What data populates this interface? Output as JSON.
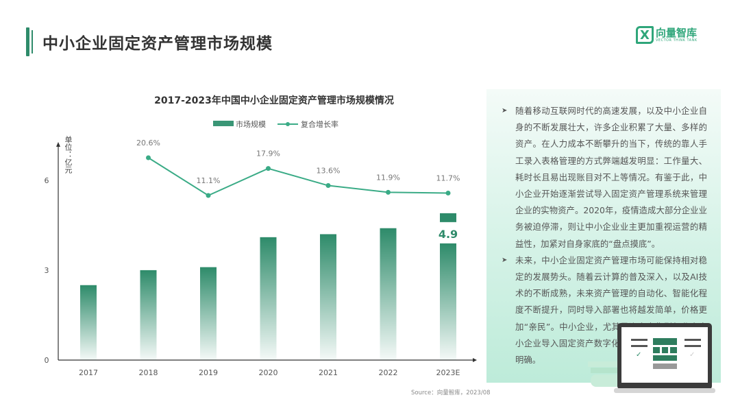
{
  "header": {
    "title": "中小企业固定资产管理市场规模"
  },
  "logo": {
    "mark": "X",
    "name_cn": "向量智库",
    "name_en": "VECTOR THINK TANK"
  },
  "chart_data": {
    "type": "bar+line",
    "title": "2017-2023年中国中小企业固定资产管理市场规模情况",
    "ylabel": "单位：亿元",
    "categories": [
      "2017",
      "2018",
      "2019",
      "2020",
      "2021",
      "2022",
      "2023E"
    ],
    "ylim": [
      0,
      7.2
    ],
    "yticks": [
      "0",
      "3",
      "6"
    ],
    "grid": false,
    "legend_position": "top",
    "series": [
      {
        "name": "市场规模",
        "type": "bar",
        "values": [
          2.5,
          3.0,
          3.1,
          4.1,
          4.2,
          4.4,
          4.9
        ],
        "color": "#2e8b6a"
      },
      {
        "name": "复合增长率",
        "type": "line",
        "values": [
          null,
          20.6,
          11.1,
          17.9,
          13.6,
          11.9,
          11.7
        ],
        "labels": [
          "",
          "20.6%",
          "11.1%",
          "17.9%",
          "13.6%",
          "11.9%",
          "11.7%"
        ],
        "color": "#3aab86"
      }
    ],
    "annotations": [
      {
        "category": "2023E",
        "text": "4.9"
      }
    ]
  },
  "panel": {
    "bullets": [
      "随着移动互联网时代的高速发展，以及中小企业自身的不断发展壮大，许多企业积累了大量、多样的资产。在人力成本不断攀升的当下，传统的靠人手工录入表格管理的方式弊端越发明显：工作量大、耗时长且易出现账目对不上等情况。有鉴于此，中小企业开始逐渐尝试导入固定资产管理系统来管理企业的实物资产。2020年，疫情造成大部分企业业务被迫停滞，则让中小企业业主更加重视运营的精益性，加紧对自身家底的“盘点摸底”。",
      "未来，中小企业固定资产管理市场可能保持相对稳定的发展势头。随着云计算的普及深入，以及AI技术的不断成熟，未来资产管理的自动化、智能化程度不断提升，同时导入部署也将越发简单，价格更加“亲民”。中小企业，尤其是资产密集型行业内中小企业导入固定资产数字化系统的意愿可能会更加明确。"
    ],
    "bullet_glyph": "➤"
  },
  "source": "Source：向量智库，2023/08"
}
